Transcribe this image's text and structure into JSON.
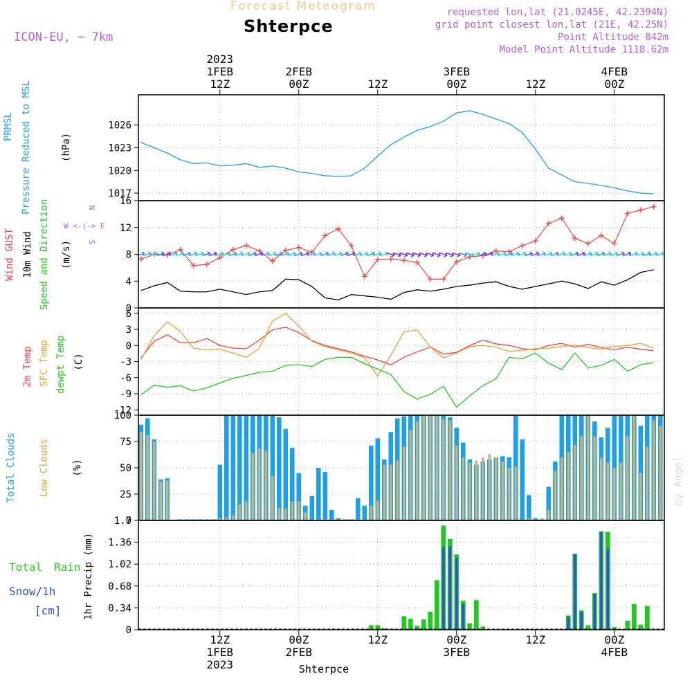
{
  "header": {
    "title": "Shterpce",
    "subtitle": "Forecast Meteogram",
    "model": "ICON-EU, ~ 7km",
    "info_lines": [
      "requested lon,lat (21.0245E, 42.2394N)",
      "grid point closest lon,lat (21E, 42.25N)",
      "Point Altitude 842m",
      "Model Point Altitude 1118.62m"
    ],
    "watermark": "by Angel",
    "footer_label": "Shterpce"
  },
  "colors": {
    "pressure": "#1ea0e6",
    "gust": "#f04040",
    "wind": "#000000",
    "temp": "#f04040",
    "sfc": "#e6a030",
    "dew": "#20c820",
    "total_cloud": "#1ea0e6",
    "low_cloud": "#c8b478",
    "rain": "#20c820",
    "snow": "#3050e0",
    "label_purple": "#b060d0"
  },
  "time_axis": {
    "top_ticks": [
      {
        "t": 12,
        "lines": [
          "2023",
          "1FEB",
          "12Z"
        ]
      },
      {
        "t": 24,
        "lines": [
          "2FEB",
          "00Z"
        ]
      },
      {
        "t": 36,
        "lines": [
          "12Z"
        ]
      },
      {
        "t": 48,
        "lines": [
          "3FEB",
          "00Z"
        ]
      },
      {
        "t": 60,
        "lines": [
          "12Z"
        ]
      },
      {
        "t": 72,
        "lines": [
          "4FEB",
          "00Z"
        ]
      }
    ],
    "bottom_ticks": [
      {
        "t": 12,
        "lines": [
          "12Z",
          "1FEB",
          "2023"
        ]
      },
      {
        "t": 24,
        "lines": [
          "00Z",
          "2FEB"
        ]
      },
      {
        "t": 36,
        "lines": [
          "12Z"
        ]
      },
      {
        "t": 48,
        "lines": [
          "00Z",
          "3FEB"
        ]
      },
      {
        "t": 60,
        "lines": [
          "12Z"
        ]
      },
      {
        "t": 72,
        "lines": [
          "00Z",
          "4FEB"
        ]
      }
    ]
  },
  "panel_labels": {
    "pressure": {
      "lines": [
        "PRMSL",
        "Pressure Reduced to MSL"
      ],
      "unit": "(hPa)"
    },
    "wind": {
      "gust": "Wind GUST",
      "wind": "10m Wind",
      "dir": "Speed and Direction",
      "unit": "(m/s)",
      "compass": [
        "N",
        "W <-|-> E",
        "S"
      ]
    },
    "temp": {
      "t2m": "2m Temp",
      "sfc": "SFC Temp",
      "dew": "dewpt Temp",
      "unit": "(C)"
    },
    "cloud": {
      "total": "Total Clouds",
      "low": "Low Clouds",
      "unit": "(%)"
    },
    "precip": {
      "total": "Total",
      "rain": "Rain",
      "snow": "Snow/1h",
      "cm": "[cm]",
      "axis": "1hr Precip (mm)"
    }
  },
  "chart_data": [
    {
      "type": "line",
      "title": "PRMSL Pressure Reduced to MSL",
      "ylabel": "(hPa)",
      "x_unit": "forecast hour (t=0 at 1FEB 00Z)",
      "ylim": [
        1016,
        1030
      ],
      "yticks": [
        1017,
        1020,
        1023,
        1026
      ],
      "x": [
        0,
        2,
        4,
        6,
        8,
        10,
        12,
        14,
        16,
        18,
        20,
        22,
        24,
        26,
        28,
        30,
        32,
        34,
        36,
        38,
        40,
        42,
        44,
        46,
        48,
        50,
        52,
        54,
        56,
        58,
        60,
        62,
        64,
        66,
        68,
        70,
        72,
        74,
        76,
        78
      ],
      "values": [
        1023.7,
        1023.0,
        1022.3,
        1021.4,
        1020.9,
        1021.0,
        1020.6,
        1020.7,
        1020.9,
        1020.4,
        1020.6,
        1020.3,
        1019.8,
        1019.6,
        1019.3,
        1019.2,
        1019.3,
        1020.3,
        1021.9,
        1023.4,
        1024.4,
        1025.3,
        1025.8,
        1026.5,
        1027.6,
        1027.9,
        1027.4,
        1026.8,
        1026.2,
        1025.0,
        1022.8,
        1020.3,
        1019.4,
        1018.5,
        1018.3,
        1018.0,
        1017.7,
        1017.3,
        1017.0,
        1016.9
      ]
    },
    {
      "type": "line",
      "title": "Wind GUST / 10m Wind Speed and Direction",
      "ylabel": "(m/s)",
      "ylim": [
        0,
        16
      ],
      "yticks": [
        0,
        4,
        8,
        12,
        16
      ],
      "x": [
        0,
        2,
        4,
        6,
        8,
        10,
        12,
        14,
        16,
        18,
        20,
        22,
        24,
        26,
        28,
        30,
        32,
        34,
        36,
        38,
        40,
        42,
        44,
        46,
        48,
        50,
        52,
        54,
        56,
        58,
        60,
        62,
        64,
        66,
        68,
        70,
        72,
        74,
        76,
        78
      ],
      "series": [
        {
          "name": "Wind GUST",
          "values": [
            7.3,
            8.0,
            7.9,
            8.7,
            6.3,
            6.5,
            7.5,
            8.7,
            9.3,
            8.5,
            7.0,
            8.6,
            9.0,
            8.3,
            10.8,
            11.8,
            9.3,
            4.7,
            7.2,
            7.3,
            7.1,
            6.8,
            4.3,
            4.3,
            6.9,
            7.6,
            7.8,
            8.5,
            8.4,
            9.3,
            10.0,
            12.6,
            13.4,
            10.4,
            9.6,
            10.8,
            9.6,
            14.1,
            14.6,
            15.1
          ]
        },
        {
          "name": "10m Wind",
          "values": [
            2.6,
            3.3,
            3.8,
            2.5,
            2.4,
            2.4,
            2.8,
            2.4,
            2.0,
            2.4,
            2.6,
            4.3,
            4.2,
            3.2,
            1.5,
            1.2,
            2.0,
            1.8,
            1.6,
            1.3,
            2.3,
            2.7,
            2.5,
            2.8,
            3.2,
            3.4,
            3.7,
            3.9,
            3.2,
            2.8,
            3.2,
            3.6,
            4.0,
            3.6,
            2.9,
            3.9,
            3.4,
            4.2,
            5.3,
            5.7
          ]
        }
      ],
      "direction_arrows": "drawn along the 8 m/s level, blowing mostly toward the east-north-east"
    },
    {
      "type": "line",
      "title": "2m Temp / SFC Temp / dewpt Temp",
      "ylabel": "(C)",
      "ylim": [
        -13,
        7
      ],
      "yticks": [
        -12,
        -9,
        -6,
        -3,
        0,
        3,
        6
      ],
      "x": [
        0,
        2,
        4,
        6,
        8,
        10,
        12,
        14,
        16,
        18,
        20,
        22,
        24,
        26,
        28,
        30,
        32,
        34,
        36,
        38,
        40,
        42,
        44,
        46,
        48,
        50,
        52,
        54,
        56,
        58,
        60,
        62,
        64,
        66,
        68,
        70,
        72,
        74,
        76,
        78
      ],
      "series": [
        {
          "name": "2m Temp",
          "values": [
            -2.3,
            0.8,
            2.0,
            0.5,
            0.5,
            1.3,
            0.0,
            -0.5,
            -0.6,
            1.0,
            2.9,
            3.4,
            2.4,
            0.9,
            0.0,
            -0.6,
            -1.2,
            -2.0,
            -2.7,
            -3.6,
            -2.2,
            -1.2,
            -0.3,
            -1.6,
            -1.3,
            0.0,
            1.0,
            0.3,
            0.0,
            -0.6,
            -0.8,
            0.0,
            0.4,
            -0.3,
            0.2,
            -0.4,
            -0.8,
            -0.3,
            -0.7,
            -1.0
          ]
        },
        {
          "name": "SFC Temp",
          "values": [
            -2.6,
            1.8,
            4.4,
            2.6,
            -0.5,
            -0.8,
            -0.7,
            -1.4,
            -2.2,
            -0.5,
            4.5,
            6.0,
            3.6,
            0.8,
            -0.2,
            -0.8,
            -1.4,
            -2.3,
            -5.7,
            -1.8,
            2.5,
            2.9,
            -0.3,
            -2.3,
            -1.4,
            -0.2,
            0.0,
            -0.3,
            -1.1,
            -0.9,
            -0.6,
            -0.5,
            -0.2,
            0.1,
            -0.4,
            -0.7,
            -0.2,
            0.0,
            0.4,
            -0.5
          ]
        },
        {
          "name": "dewpt Temp",
          "values": [
            -9.2,
            -7.4,
            -7.8,
            -7.5,
            -8.5,
            -7.9,
            -7.0,
            -6.1,
            -5.6,
            -5.0,
            -4.8,
            -3.7,
            -3.6,
            -3.9,
            -2.6,
            -2.2,
            -2.2,
            -3.4,
            -4.4,
            -5.4,
            -8.6,
            -10.0,
            -9.1,
            -7.6,
            -11.5,
            -9.4,
            -7.5,
            -6.2,
            -2.2,
            -2.5,
            -1.4,
            -3.3,
            -4.5,
            -1.4,
            -4.2,
            -3.7,
            -2.6,
            -4.8,
            -3.6,
            -3.2
          ]
        }
      ]
    },
    {
      "type": "bar",
      "title": "Total Clouds / Low Clouds",
      "ylabel": "(%)",
      "ylim": [
        0,
        100
      ],
      "yticks": [
        0,
        25,
        50,
        75,
        100
      ],
      "x_unit": "forecast hour",
      "x_start": 0,
      "x_step": 1,
      "series": [
        {
          "name": "Total Clouds",
          "values": [
            91,
            97,
            77,
            39,
            40,
            0,
            1,
            1,
            1,
            1,
            1,
            1,
            53,
            100,
            100,
            100,
            100,
            100,
            100,
            100,
            100,
            98,
            87,
            69,
            45,
            14,
            23,
            50,
            46,
            10,
            2,
            1,
            1,
            21,
            14,
            71,
            78,
            58,
            84,
            97,
            99,
            100,
            100,
            100,
            100,
            100,
            100,
            98,
            88,
            74,
            58,
            53,
            56,
            58,
            60,
            61,
            60,
            100,
            77,
            24,
            2,
            1,
            32,
            56,
            100,
            100,
            100,
            100,
            100,
            94,
            79,
            88,
            100,
            100,
            100,
            100,
            90,
            100,
            100,
            100
          ]
        },
        {
          "name": "Low Clouds",
          "values": [
            84,
            81,
            75,
            37,
            38,
            0,
            0,
            0,
            0,
            0,
            0,
            0,
            2,
            3,
            5,
            15,
            18,
            64,
            68,
            66,
            42,
            12,
            11,
            18,
            18,
            8,
            1,
            1,
            1,
            1,
            1,
            1,
            1,
            1,
            1,
            14,
            19,
            53,
            53,
            57,
            70,
            86,
            94,
            100,
            100,
            100,
            96,
            95,
            71,
            60,
            55,
            57,
            60,
            63,
            60,
            56,
            50,
            51,
            1,
            2,
            1,
            2,
            10,
            47,
            60,
            65,
            72,
            80,
            100,
            80,
            60,
            55,
            50,
            55,
            80,
            100,
            45,
            70,
            95,
            90
          ]
        }
      ]
    },
    {
      "type": "bar",
      "title": "Total Rain / Snow 1hr Precip",
      "ylabel": "1hr Precip (mm)",
      "ylim": [
        0,
        1.7
      ],
      "yticks": [
        0,
        0.34,
        0.68,
        1.02,
        1.36,
        1.7
      ],
      "x_unit": "forecast hour",
      "x_start": 0,
      "x_step": 1,
      "series": [
        {
          "name": "Total Rain",
          "values": [
            0,
            0,
            0,
            0,
            0,
            0,
            0,
            0,
            0,
            0,
            0,
            0,
            0,
            0,
            0,
            0,
            0,
            0,
            0,
            0,
            0,
            0,
            0,
            0,
            0,
            0,
            0,
            0,
            0,
            0,
            0,
            0,
            0,
            0,
            0,
            0.07,
            0.07,
            0.02,
            0,
            0,
            0.21,
            0.17,
            0.06,
            0.16,
            0.28,
            0.77,
            1.62,
            1.41,
            1.17,
            0.45,
            0.1,
            0.46,
            0.05,
            0,
            0,
            0,
            0,
            0,
            0,
            0,
            0,
            0,
            0,
            0,
            0,
            0.22,
            1.18,
            0.3,
            0.07,
            0.57,
            1.53,
            1.52,
            0.04,
            0,
            0.14,
            0.4,
            0.08,
            0.37,
            0,
            0
          ]
        },
        {
          "name": "Snow/1h",
          "values": [
            0,
            0,
            0,
            0,
            0,
            0,
            0,
            0,
            0,
            0,
            0,
            0,
            0,
            0,
            0,
            0,
            0,
            0,
            0,
            0,
            0,
            0,
            0,
            0,
            0,
            0,
            0,
            0,
            0,
            0,
            0,
            0,
            0,
            0,
            0,
            0,
            0,
            0,
            0,
            0,
            0,
            0,
            0,
            0,
            0,
            0,
            1.28,
            1.3,
            1.12,
            0.4,
            0,
            0,
            0,
            0,
            0,
            0,
            0,
            0,
            0,
            0,
            0,
            0,
            0,
            0,
            0,
            0.2,
            1.18,
            0.28,
            0,
            0.55,
            1.52,
            1.26,
            0,
            0,
            0,
            0,
            0,
            0,
            0,
            0
          ]
        }
      ]
    }
  ]
}
